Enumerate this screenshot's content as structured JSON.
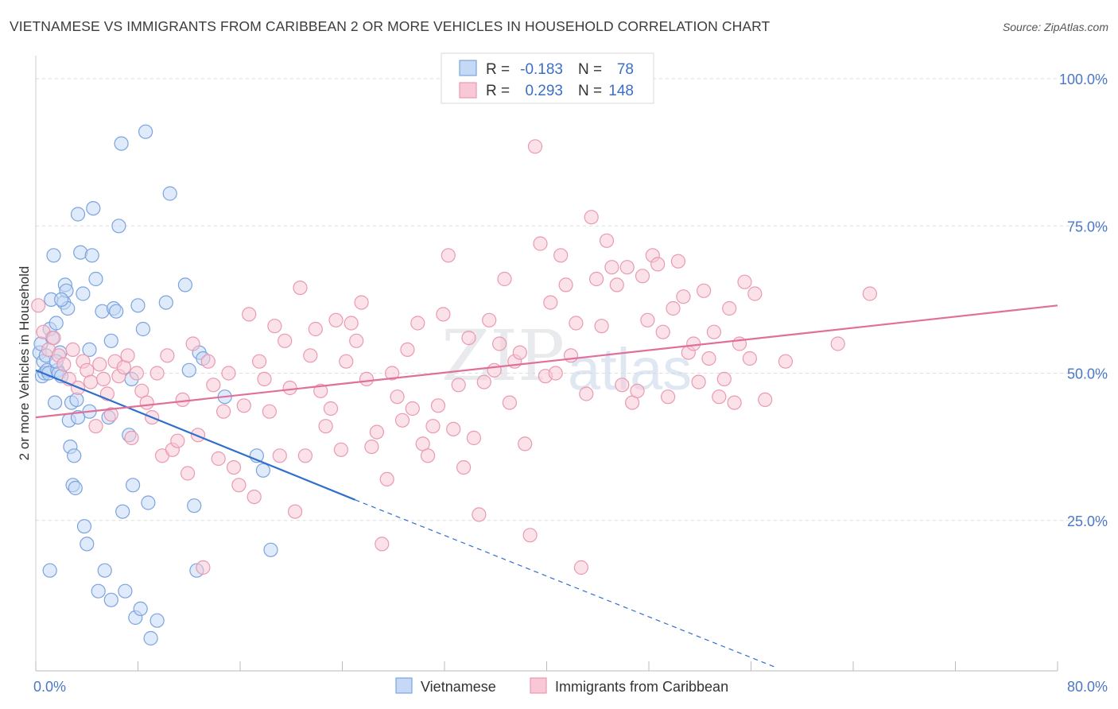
{
  "chart_data": {
    "type": "scatter",
    "title": "VIETNAMESE VS IMMIGRANTS FROM CARIBBEAN 2 OR MORE VEHICLES IN HOUSEHOLD CORRELATION CHART",
    "source": "Source: ZipAtlas.com",
    "ylabel": "2 or more Vehicles in Household",
    "xlim": [
      0,
      80
    ],
    "ylim": [
      0,
      105
    ],
    "x_tick_labels": {
      "left": "0.0%",
      "right": "80.0%"
    },
    "y_tick_labels": [
      "100.0%",
      "75.0%",
      "50.0%",
      "25.0%"
    ],
    "y_tick_values": [
      100,
      75,
      50,
      25
    ],
    "watermark": {
      "zip": "ZIP",
      "atlas": "atlas"
    },
    "legend": {
      "r_label": "R =",
      "n_label": "N =",
      "entries": [
        {
          "r": "-0.183",
          "n": "78"
        },
        {
          "r": "0.293",
          "n": "148"
        }
      ]
    },
    "colors": {
      "vietnamese_fill": "#c5d8f5",
      "vietnamese_stroke": "#7ba3dd",
      "vietnamese_line": "#3070cc",
      "caribbean_fill": "#f8c8d6",
      "caribbean_stroke": "#e99ab2",
      "caribbean_line": "#e0709a",
      "axis_value": "#4a78c6",
      "grid": "#dddddd"
    },
    "series": [
      {
        "name": "Vietnamese",
        "trend": {
          "x0": 0,
          "y0": 50.5,
          "x1": 25,
          "y1": 28.5,
          "dash_to_x": 58,
          "dash_to_y": 0
        },
        "points": [
          [
            0.3,
            53.5
          ],
          [
            0.4,
            55
          ],
          [
            0.5,
            49.5
          ],
          [
            0.6,
            52
          ],
          [
            0.7,
            50
          ],
          [
            0.8,
            53
          ],
          [
            0.9,
            50.5
          ],
          [
            1.0,
            50
          ],
          [
            1.1,
            57.5
          ],
          [
            1.2,
            62.5
          ],
          [
            1.3,
            56
          ],
          [
            1.4,
            70
          ],
          [
            1.5,
            45
          ],
          [
            1.6,
            58.5
          ],
          [
            1.7,
            50.5
          ],
          [
            1.8,
            50
          ],
          [
            1.9,
            53.5
          ],
          [
            2.0,
            49.5
          ],
          [
            2.2,
            62
          ],
          [
            2.3,
            65
          ],
          [
            2.4,
            64
          ],
          [
            2.5,
            61
          ],
          [
            2.6,
            42
          ],
          [
            2.7,
            37.5
          ],
          [
            2.8,
            45
          ],
          [
            2.9,
            31
          ],
          [
            3.0,
            36
          ],
          [
            3.1,
            30.5
          ],
          [
            3.2,
            45.5
          ],
          [
            3.3,
            77
          ],
          [
            3.5,
            70.5
          ],
          [
            3.7,
            63.5
          ],
          [
            3.8,
            24
          ],
          [
            4.0,
            21
          ],
          [
            4.2,
            54
          ],
          [
            4.4,
            70
          ],
          [
            4.5,
            78
          ],
          [
            4.7,
            66
          ],
          [
            4.9,
            13
          ],
          [
            5.2,
            60.5
          ],
          [
            5.4,
            16.5
          ],
          [
            5.7,
            42.5
          ],
          [
            5.9,
            11.5
          ],
          [
            6.1,
            61
          ],
          [
            6.3,
            60.5
          ],
          [
            6.5,
            75
          ],
          [
            6.7,
            89
          ],
          [
            6.8,
            26.5
          ],
          [
            7.0,
            13
          ],
          [
            7.3,
            39.5
          ],
          [
            7.5,
            49
          ],
          [
            7.6,
            31
          ],
          [
            7.8,
            8.5
          ],
          [
            8.0,
            61.5
          ],
          [
            8.2,
            10
          ],
          [
            8.4,
            57.5
          ],
          [
            8.6,
            91
          ],
          [
            8.8,
            28
          ],
          [
            9.0,
            5
          ],
          [
            9.5,
            8
          ],
          [
            10.2,
            62
          ],
          [
            10.5,
            80.5
          ],
          [
            11.7,
            65
          ],
          [
            12.0,
            50.5
          ],
          [
            12.4,
            27.5
          ],
          [
            12.6,
            16.5
          ],
          [
            12.8,
            53.5
          ],
          [
            13.1,
            52.5
          ],
          [
            14.8,
            46
          ],
          [
            17.3,
            36
          ],
          [
            17.8,
            33.5
          ],
          [
            18.4,
            20
          ],
          [
            1.1,
            16.5
          ],
          [
            4.2,
            43.5
          ],
          [
            2.0,
            62.5
          ],
          [
            5.9,
            55.5
          ],
          [
            1.6,
            52
          ],
          [
            3.3,
            42.5
          ]
        ]
      },
      {
        "name": "Immigrants from Caribbean",
        "trend": {
          "x0": 0,
          "y0": 42.5,
          "x1": 80,
          "y1": 61.5
        },
        "points": [
          [
            0.2,
            61.5
          ],
          [
            0.6,
            57
          ],
          [
            1.0,
            54
          ],
          [
            1.4,
            56
          ],
          [
            1.8,
            53
          ],
          [
            2.2,
            51.5
          ],
          [
            2.6,
            49
          ],
          [
            2.9,
            54
          ],
          [
            3.3,
            47.5
          ],
          [
            3.7,
            52
          ],
          [
            4.0,
            50.5
          ],
          [
            4.3,
            48.5
          ],
          [
            4.7,
            41
          ],
          [
            5.0,
            51.5
          ],
          [
            5.3,
            49
          ],
          [
            5.6,
            46.5
          ],
          [
            5.9,
            43
          ],
          [
            6.2,
            52
          ],
          [
            6.5,
            49.5
          ],
          [
            6.9,
            51
          ],
          [
            7.2,
            53
          ],
          [
            7.5,
            39
          ],
          [
            7.9,
            50
          ],
          [
            8.3,
            47
          ],
          [
            8.7,
            45
          ],
          [
            9.1,
            42.5
          ],
          [
            9.5,
            50
          ],
          [
            9.9,
            36
          ],
          [
            10.3,
            53
          ],
          [
            10.7,
            37
          ],
          [
            11.1,
            38.5
          ],
          [
            11.5,
            45.5
          ],
          [
            11.9,
            33
          ],
          [
            12.3,
            55
          ],
          [
            12.7,
            39.5
          ],
          [
            13.1,
            17
          ],
          [
            13.5,
            52
          ],
          [
            13.9,
            48
          ],
          [
            14.3,
            35.5
          ],
          [
            14.7,
            43.5
          ],
          [
            15.1,
            50
          ],
          [
            15.5,
            34
          ],
          [
            15.9,
            31
          ],
          [
            16.3,
            44.5
          ],
          [
            16.7,
            60
          ],
          [
            17.1,
            29
          ],
          [
            17.5,
            52
          ],
          [
            17.9,
            49
          ],
          [
            18.3,
            43.5
          ],
          [
            18.7,
            58
          ],
          [
            19.1,
            36
          ],
          [
            19.5,
            55.5
          ],
          [
            19.9,
            47.5
          ],
          [
            20.3,
            26.5
          ],
          [
            20.7,
            64.5
          ],
          [
            21.1,
            36
          ],
          [
            21.5,
            53
          ],
          [
            21.9,
            57.5
          ],
          [
            22.3,
            47
          ],
          [
            22.7,
            41
          ],
          [
            23.1,
            44
          ],
          [
            23.5,
            59
          ],
          [
            23.9,
            37
          ],
          [
            24.3,
            52
          ],
          [
            24.7,
            58.5
          ],
          [
            25.1,
            55.5
          ],
          [
            25.5,
            62
          ],
          [
            25.9,
            49
          ],
          [
            26.3,
            37.5
          ],
          [
            26.7,
            40
          ],
          [
            27.1,
            21
          ],
          [
            27.5,
            32
          ],
          [
            27.9,
            50
          ],
          [
            28.3,
            46
          ],
          [
            28.7,
            42
          ],
          [
            29.1,
            54
          ],
          [
            29.5,
            44
          ],
          [
            29.9,
            58.5
          ],
          [
            30.3,
            38
          ],
          [
            30.7,
            36
          ],
          [
            31.1,
            41
          ],
          [
            31.5,
            44.5
          ],
          [
            31.9,
            60
          ],
          [
            32.3,
            70
          ],
          [
            32.7,
            40.5
          ],
          [
            33.1,
            48
          ],
          [
            33.5,
            34
          ],
          [
            33.9,
            56
          ],
          [
            34.3,
            39
          ],
          [
            34.7,
            26
          ],
          [
            35.1,
            48.5
          ],
          [
            35.5,
            59
          ],
          [
            35.9,
            50.5
          ],
          [
            36.3,
            55
          ],
          [
            36.7,
            66
          ],
          [
            37.1,
            45
          ],
          [
            37.5,
            52
          ],
          [
            37.9,
            53.5
          ],
          [
            38.3,
            38
          ],
          [
            38.7,
            22.5
          ],
          [
            39.1,
            88.5
          ],
          [
            39.5,
            72
          ],
          [
            39.9,
            49.5
          ],
          [
            40.3,
            62
          ],
          [
            40.7,
            50
          ],
          [
            41.1,
            70
          ],
          [
            41.5,
            65
          ],
          [
            41.9,
            53
          ],
          [
            42.3,
            58.5
          ],
          [
            42.7,
            17
          ],
          [
            43.1,
            46.5
          ],
          [
            43.5,
            76.5
          ],
          [
            43.9,
            66
          ],
          [
            44.3,
            58
          ],
          [
            44.7,
            72.5
          ],
          [
            45.1,
            68
          ],
          [
            45.5,
            65
          ],
          [
            45.9,
            48
          ],
          [
            46.3,
            68
          ],
          [
            46.7,
            45
          ],
          [
            47.1,
            47
          ],
          [
            47.5,
            66.5
          ],
          [
            47.9,
            59
          ],
          [
            48.3,
            70
          ],
          [
            48.7,
            68.5
          ],
          [
            49.1,
            57
          ],
          [
            49.5,
            46
          ],
          [
            49.9,
            61
          ],
          [
            50.3,
            69
          ],
          [
            50.7,
            63
          ],
          [
            51.1,
            53.5
          ],
          [
            51.5,
            55
          ],
          [
            51.9,
            48.5
          ],
          [
            52.3,
            64
          ],
          [
            52.7,
            52.5
          ],
          [
            53.1,
            57
          ],
          [
            53.5,
            46
          ],
          [
            53.9,
            49
          ],
          [
            54.3,
            61
          ],
          [
            54.7,
            45
          ],
          [
            55.1,
            55
          ],
          [
            55.5,
            65.5
          ],
          [
            55.9,
            52.5
          ],
          [
            56.3,
            63.5
          ],
          [
            57.1,
            45.5
          ],
          [
            58.7,
            52
          ],
          [
            62.8,
            55
          ],
          [
            65.3,
            63.5
          ]
        ]
      }
    ],
    "bottom_legend": [
      "Vietnamese",
      "Immigrants from Caribbean"
    ]
  }
}
